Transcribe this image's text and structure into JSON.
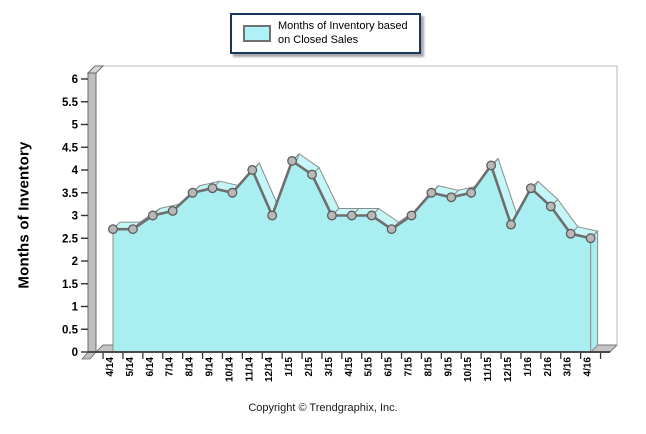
{
  "legend": {
    "line1": "Months of Inventory based",
    "line2": "on Closed Sales"
  },
  "y_axis_title": "Months of Inventory",
  "footer": "Copyright © Trendgraphix, Inc.",
  "chart_data": {
    "type": "area",
    "title": "Months of Inventory based on Closed Sales",
    "xlabel": "",
    "ylabel": "Months of Inventory",
    "ylim": [
      0,
      6
    ],
    "ytick_step": 0.5,
    "y_tick_labels": [
      "0",
      "0.5",
      "1",
      "1.5",
      "2",
      "2.5",
      "3",
      "3.5",
      "4",
      "4.5",
      "5",
      "5.5",
      "6"
    ],
    "grid": false,
    "legend_position": "top-center",
    "categories": [
      "4/14",
      "5/14",
      "6/14",
      "7/14",
      "8/14",
      "9/14",
      "10/14",
      "11/14",
      "12/14",
      "1/15",
      "2/15",
      "3/15",
      "4/15",
      "5/15",
      "6/15",
      "7/15",
      "8/15",
      "9/15",
      "10/15",
      "11/15",
      "12/15",
      "1/16",
      "2/16",
      "3/16",
      "4/16"
    ],
    "series": [
      {
        "name": "Months of Inventory based on Closed Sales",
        "values": [
          2.7,
          2.7,
          3.0,
          3.1,
          3.5,
          3.6,
          3.5,
          4.0,
          3.0,
          4.2,
          3.9,
          3.0,
          3.0,
          3.0,
          2.7,
          3.0,
          3.5,
          3.4,
          3.5,
          4.1,
          2.8,
          3.6,
          3.2,
          2.6,
          2.5
        ]
      }
    ],
    "colors": {
      "area_fill": "#a9eff2",
      "ribbon_fill": "#c4f6f8",
      "area_stroke": "#8c8c8c",
      "line": "#6e6e6e",
      "marker_fill": "#b8b8b8",
      "marker_stroke": "#5c5c5c",
      "wall_face": "#bfbfbf",
      "wall_cap": "#d9d9d9",
      "floor": "#c4c4c4",
      "frame_back": "#c8c8c8",
      "axis_line": "#4a4a4a",
      "tick_text": "#000000",
      "legend_border": "#17375e",
      "legend_swatch": "#aef2f5"
    }
  }
}
